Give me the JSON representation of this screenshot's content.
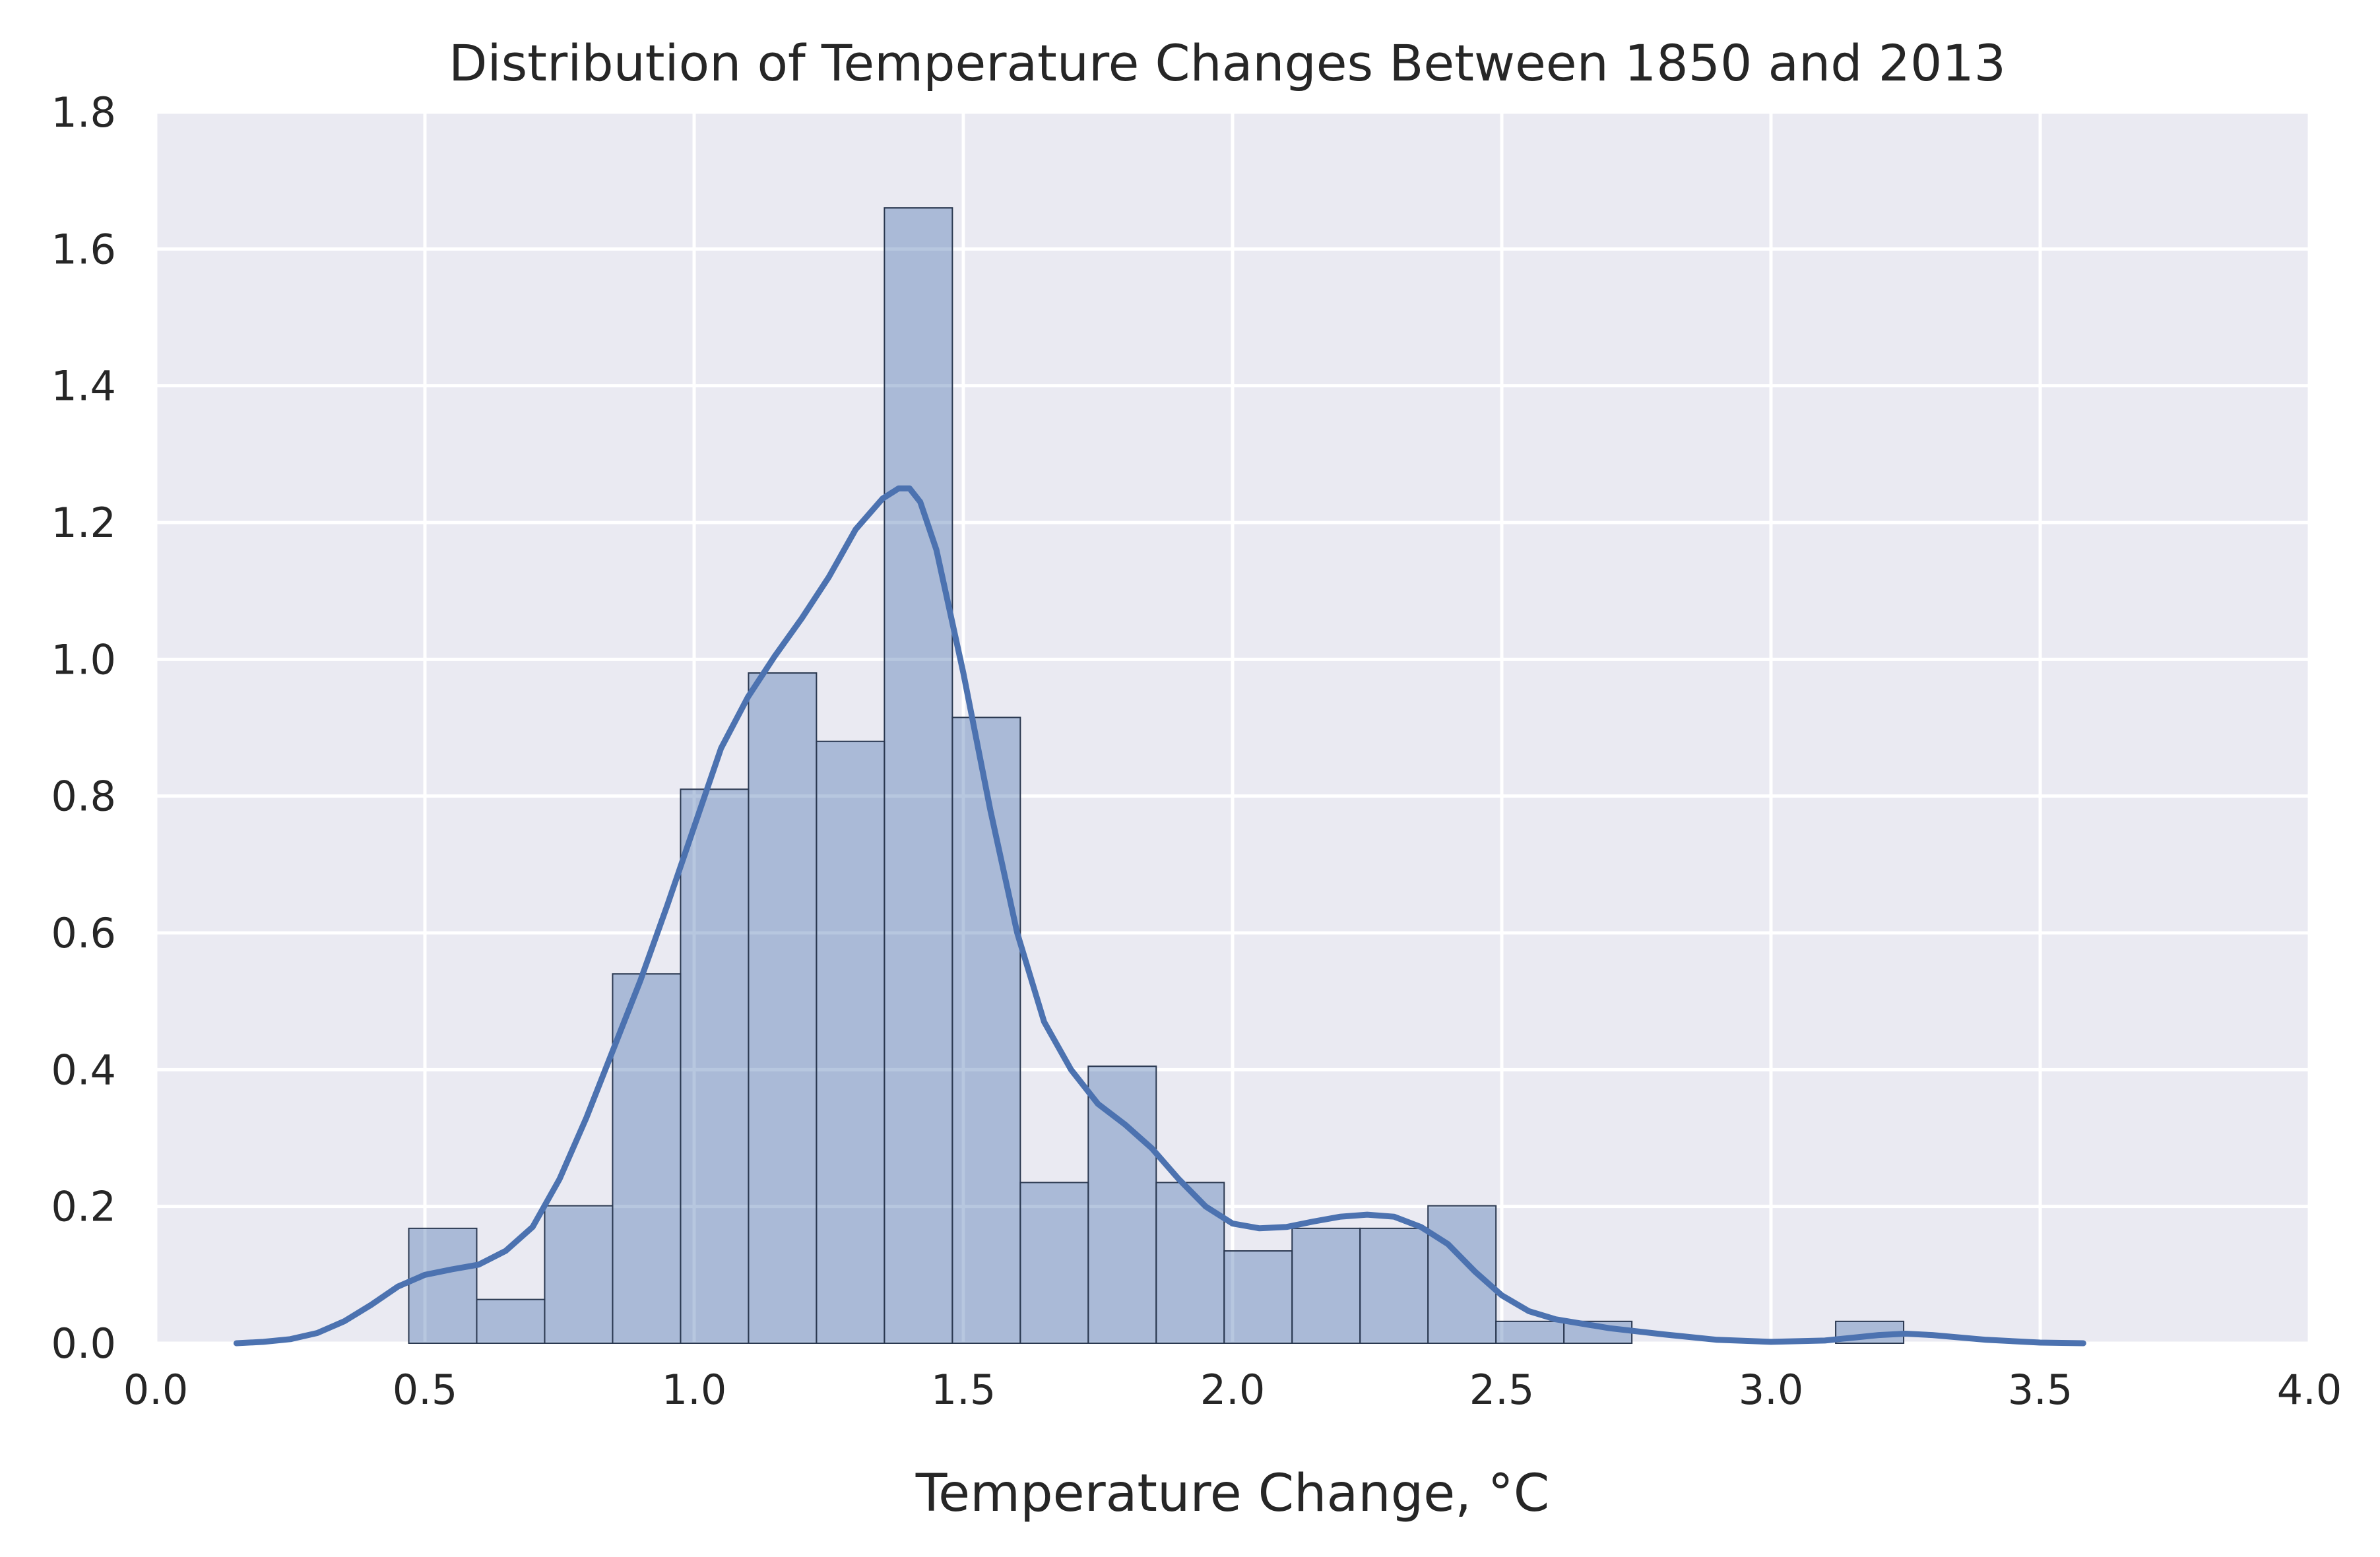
{
  "chart_data": {
    "type": "bar",
    "title": "Distribution of Temperature Changes Between 1850 and 2013",
    "xlabel": "Temperature Change, °C",
    "ylabel": "",
    "xlim": [
      0.0,
      4.0
    ],
    "ylim": [
      0.0,
      1.8
    ],
    "grid": true,
    "xticks": [
      0.0,
      0.5,
      1.0,
      1.5,
      2.0,
      2.5,
      3.0,
      3.5,
      4.0
    ],
    "yticks": [
      0.0,
      0.2,
      0.4,
      0.6,
      0.8,
      1.0,
      1.2,
      1.4,
      1.6,
      1.8
    ],
    "xtick_labels": [
      "0.0",
      "0.5",
      "1.0",
      "1.5",
      "2.0",
      "2.5",
      "3.0",
      "3.5",
      "4.0"
    ],
    "ytick_labels": [
      "0.0",
      "0.2",
      "0.4",
      "0.6",
      "0.8",
      "1.0",
      "1.2",
      "1.4",
      "1.6",
      "1.8"
    ],
    "bin_edges": [
      0.47,
      0.5962,
      0.7224,
      0.8486,
      0.9748,
      1.101,
      1.2272,
      1.3534,
      1.4796,
      1.6058,
      1.732,
      1.8582,
      1.9844,
      2.1106,
      2.2368,
      2.363,
      2.4892,
      2.6154,
      2.7416,
      2.8678,
      2.994,
      3.1202,
      3.2464
    ],
    "values": [
      0.168,
      0.064,
      0.201,
      0.54,
      0.81,
      0.98,
      0.88,
      1.66,
      0.915,
      0.235,
      0.405,
      0.235,
      0.135,
      0.168,
      0.168,
      0.201,
      0.032,
      0.032,
      0.0,
      0.0,
      0.0,
      0.032
    ],
    "kde": {
      "x": [
        0.15,
        0.2,
        0.25,
        0.3,
        0.35,
        0.4,
        0.45,
        0.5,
        0.55,
        0.6,
        0.65,
        0.7,
        0.75,
        0.8,
        0.85,
        0.9,
        0.95,
        1.0,
        1.05,
        1.1,
        1.15,
        1.2,
        1.25,
        1.3,
        1.35,
        1.38,
        1.4,
        1.42,
        1.45,
        1.5,
        1.55,
        1.6,
        1.65,
        1.7,
        1.75,
        1.8,
        1.85,
        1.9,
        1.95,
        2.0,
        2.05,
        2.1,
        2.15,
        2.2,
        2.25,
        2.3,
        2.35,
        2.4,
        2.45,
        2.5,
        2.55,
        2.6,
        2.7,
        2.8,
        2.9,
        3.0,
        3.1,
        3.2,
        3.25,
        3.3,
        3.4,
        3.5,
        3.58
      ],
      "y": [
        0.0,
        0.002,
        0.006,
        0.015,
        0.032,
        0.056,
        0.083,
        0.1,
        0.108,
        0.115,
        0.135,
        0.17,
        0.24,
        0.33,
        0.43,
        0.53,
        0.64,
        0.755,
        0.87,
        0.945,
        1.005,
        1.06,
        1.12,
        1.19,
        1.235,
        1.25,
        1.25,
        1.23,
        1.16,
        0.98,
        0.78,
        0.6,
        0.47,
        0.4,
        0.35,
        0.32,
        0.285,
        0.24,
        0.2,
        0.175,
        0.168,
        0.17,
        0.178,
        0.185,
        0.188,
        0.185,
        0.17,
        0.145,
        0.105,
        0.07,
        0.047,
        0.035,
        0.022,
        0.013,
        0.005,
        0.002,
        0.004,
        0.012,
        0.014,
        0.012,
        0.005,
        0.001,
        0.0
      ]
    },
    "colors": {
      "background": "#EAEAF2",
      "grid": "#FFFFFF",
      "bar_fill": "#4C72B0",
      "bar_edge": "#2A3850",
      "kde_line": "#4C72B0",
      "text": "#262626"
    }
  }
}
